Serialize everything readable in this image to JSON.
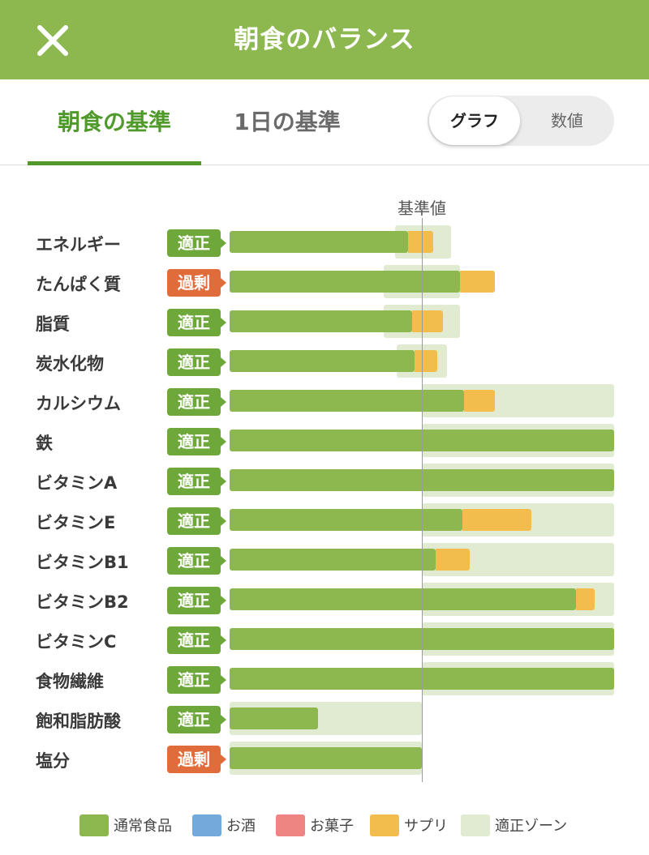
{
  "header": {
    "title": "朝食のバランス",
    "close_icon": "close-icon"
  },
  "tabs": [
    {
      "label": "朝食の基準",
      "active": true
    },
    {
      "label": "1日の基準",
      "active": false
    }
  ],
  "view_toggle": {
    "options": [
      "グラフ",
      "数値"
    ],
    "selected": "グラフ"
  },
  "chart_data": {
    "type": "bar",
    "reference_label": "基準値",
    "status_colors": {
      "適正": "#6ea83b",
      "過剰": "#e06c3b"
    },
    "series": [
      {
        "name": "通常食品",
        "color": "#8db84f"
      },
      {
        "name": "お酒",
        "color": "#72aadb"
      },
      {
        "name": "お菓子",
        "color": "#ee8583"
      },
      {
        "name": "サプリ",
        "color": "#f3bd4e"
      },
      {
        "name": "適正ゾーン",
        "color": "#e1ebd2"
      }
    ],
    "nutrients": [
      {
        "name": "エネルギー",
        "status": "適正",
        "normal": 93,
        "supplement": 13,
        "zone": [
          86,
          115
        ]
      },
      {
        "name": "たんぱく質",
        "status": "過剰",
        "normal": 120,
        "supplement": 18,
        "zone": [
          80,
          120
        ]
      },
      {
        "name": "脂質",
        "status": "適正",
        "normal": 95,
        "supplement": 16,
        "zone": [
          80,
          120
        ]
      },
      {
        "name": "炭水化物",
        "status": "適正",
        "normal": 96,
        "supplement": 12,
        "zone": [
          87,
          113
        ]
      },
      {
        "name": "カルシウム",
        "status": "適正",
        "normal": 122,
        "supplement": 16,
        "zone": [
          100,
          200
        ]
      },
      {
        "name": "鉄",
        "status": "適正",
        "normal": 200,
        "supplement": 0,
        "zone": [
          100,
          200
        ]
      },
      {
        "name": "ビタミンA",
        "status": "適正",
        "normal": 200,
        "supplement": 0,
        "zone": [
          100,
          200
        ]
      },
      {
        "name": "ビタミンE",
        "status": "適正",
        "normal": 121,
        "supplement": 36,
        "zone": [
          100,
          200
        ]
      },
      {
        "name": "ビタミンB1",
        "status": "適正",
        "normal": 107,
        "supplement": 18,
        "zone": [
          100,
          200
        ]
      },
      {
        "name": "ビタミンB2",
        "status": "適正",
        "normal": 180,
        "supplement": 10,
        "zone": [
          100,
          200
        ]
      },
      {
        "name": "ビタミンC",
        "status": "適正",
        "normal": 200,
        "supplement": 0,
        "zone": [
          100,
          200
        ]
      },
      {
        "name": "食物繊維",
        "status": "適正",
        "normal": 200,
        "supplement": 0,
        "zone": [
          100,
          200
        ]
      },
      {
        "name": "飽和脂肪酸",
        "status": "適正",
        "normal": 46,
        "supplement": 0,
        "zone": [
          0,
          100
        ]
      },
      {
        "name": "塩分",
        "status": "過剰",
        "normal": 100,
        "supplement": 0,
        "zone": [
          0,
          100
        ]
      }
    ],
    "xlim": [
      0,
      200
    ],
    "reference_value": 100
  },
  "legend": {
    "items": [
      "通常食品",
      "お酒",
      "お菓子",
      "サプリ",
      "適正ゾーン"
    ]
  }
}
